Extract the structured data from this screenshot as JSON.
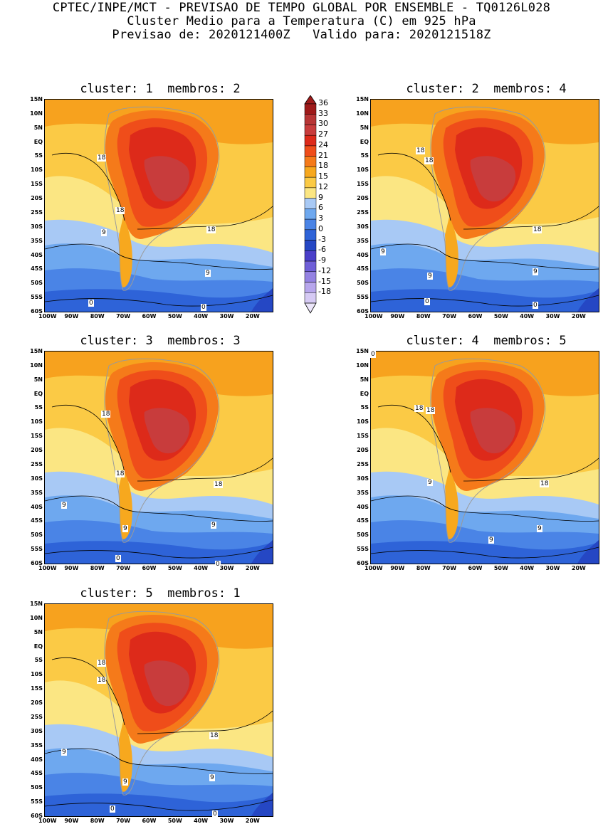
{
  "header": {
    "line1": "CPTEC/INPE/MCT - PREVISAO DE TEMPO GLOBAL POR ENSEMBLE - TQ0126L028",
    "line2": "Cluster Medio para a Temperatura (C) em 925 hPa",
    "line3": "Previsao de: 2020121400Z   Valido para: 2020121518Z"
  },
  "axes": {
    "lat_labels": [
      "15N",
      "10N",
      "5N",
      "EQ",
      "5S",
      "10S",
      "15S",
      "20S",
      "25S",
      "30S",
      "35S",
      "40S",
      "45S",
      "50S",
      "55S",
      "60S"
    ],
    "lon_labels": [
      "100W",
      "90W",
      "80W",
      "70W",
      "60W",
      "50W",
      "40W",
      "30W",
      "20W"
    ],
    "lat_range": [
      -60,
      15
    ],
    "lon_range": [
      -100,
      -12
    ]
  },
  "colorbar": {
    "labels": [
      "36",
      "33",
      "30",
      "27",
      "24",
      "21",
      "18",
      "15",
      "12",
      "9",
      "6",
      "3",
      "0",
      "-3",
      "-6",
      "-9",
      "-12",
      "-15",
      "-18"
    ],
    "colors": [
      "#9e1a1a",
      "#b73535",
      "#c83c3c",
      "#dd2a1a",
      "#ef4d1a",
      "#f57a1a",
      "#f7a81e",
      "#fbca45",
      "#fbe683",
      "#a8c9f5",
      "#6ea8ef",
      "#4a84e6",
      "#2e63d8",
      "#2547c4",
      "#4a3fc9",
      "#6f5fd8",
      "#9482e2",
      "#b7a6ec",
      "#d6caf4"
    ]
  },
  "panels": [
    {
      "title": "cluster: 1  membros: 2",
      "contour_labels": [
        "18",
        "18",
        "18",
        "9",
        "9",
        "0",
        "0"
      ]
    },
    {
      "title": "cluster: 2  membros: 4",
      "contour_labels": [
        "18",
        "18",
        "18",
        "9",
        "9",
        "9",
        "0",
        "0"
      ]
    },
    {
      "title": "cluster: 3  membros: 3",
      "contour_labels": [
        "18",
        "18",
        "18",
        "9",
        "9",
        "9",
        "0",
        "0"
      ]
    },
    {
      "title": "cluster: 4  membros: 5",
      "contour_labels": [
        "18",
        "18",
        "18",
        "9",
        "9",
        "9",
        "0"
      ]
    },
    {
      "title": "cluster: 5  membros: 1",
      "contour_labels": [
        "18",
        "18",
        "18",
        "9",
        "9",
        "9",
        "0",
        "0"
      ]
    }
  ]
}
